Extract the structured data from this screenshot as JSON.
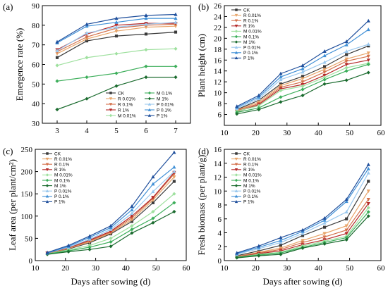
{
  "series_style": [
    {
      "name": "CK",
      "color": "#3a3a3a",
      "marker": "square"
    },
    {
      "name": "R 0.01%",
      "color": "#e8a56a",
      "marker": "tri-down"
    },
    {
      "name": "R 0.1%",
      "color": "#d4704a",
      "marker": "tri-down"
    },
    {
      "name": "R 1%",
      "color": "#b52a2a",
      "marker": "tri-down"
    },
    {
      "name": "M 0.01%",
      "color": "#9ee09e",
      "marker": "diamond"
    },
    {
      "name": "M 0.1%",
      "color": "#3cae5a",
      "marker": "diamond"
    },
    {
      "name": "M 1%",
      "color": "#1a6b2e",
      "marker": "diamond"
    },
    {
      "name": "P 0.01%",
      "color": "#9ac8ee",
      "marker": "tri-up"
    },
    {
      "name": "P 0.1%",
      "color": "#3f8fd6",
      "marker": "tri-up"
    },
    {
      "name": "P 1%",
      "color": "#1f4f9c",
      "marker": "tri-up"
    }
  ],
  "chart_data": [
    {
      "panel": "(a)",
      "type": "line",
      "xlabel": "",
      "ylabel": "Emergence rate (%)",
      "xlim": [
        2.5,
        7.5
      ],
      "ylim": [
        30,
        90
      ],
      "xticks": [
        3,
        4,
        5,
        6,
        7
      ],
      "yticks": [
        30,
        40,
        50,
        60,
        70,
        80,
        90
      ],
      "legend": "bottom-right",
      "x": [
        3,
        4,
        5,
        6,
        7
      ],
      "series": [
        {
          "name": "CK",
          "values": [
            63.5,
            72.0,
            74.5,
            75.5,
            76.5
          ]
        },
        {
          "name": "R 0.01%",
          "values": [
            65.5,
            73.0,
            77.0,
            79.0,
            79.5
          ]
        },
        {
          "name": "R 0.1%",
          "values": [
            66.5,
            74.0,
            78.5,
            80.0,
            80.5
          ]
        },
        {
          "name": "R 1%",
          "values": [
            67.5,
            75.5,
            80.0,
            81.0,
            81.0
          ]
        },
        {
          "name": "M 0.01%",
          "values": [
            59.5,
            63.5,
            65.5,
            67.5,
            68.0
          ]
        },
        {
          "name": "M 0.1%",
          "values": [
            51.5,
            53.5,
            55.5,
            59.0,
            59.0
          ]
        },
        {
          "name": "M 1%",
          "values": [
            37.0,
            42.5,
            49.0,
            53.5,
            53.5
          ]
        },
        {
          "name": "P 0.01%",
          "values": [
            67.0,
            76.0,
            79.0,
            80.5,
            81.5
          ]
        },
        {
          "name": "P 0.1%",
          "values": [
            71.0,
            79.5,
            81.5,
            83.5,
            83.5
          ]
        },
        {
          "name": "P 1%",
          "values": [
            71.5,
            80.5,
            83.5,
            85.0,
            85.5
          ]
        }
      ]
    },
    {
      "panel": "(b)",
      "type": "line",
      "xlabel": "",
      "ylabel": "Plant height (cm)",
      "xlim": [
        10,
        60
      ],
      "ylim": [
        4,
        26
      ],
      "xticks": [
        10,
        20,
        30,
        40,
        50,
        60
      ],
      "yticks": [
        6,
        8,
        10,
        12,
        14,
        16,
        18,
        20,
        22,
        24,
        26
      ],
      "legend": "top-left",
      "x": [
        14,
        21,
        28,
        35,
        42,
        49,
        56
      ],
      "series": [
        {
          "name": "CK",
          "values": [
            6.9,
            8.6,
            11.6,
            13.0,
            14.8,
            17.0,
            18.6
          ]
        },
        {
          "name": "R 0.01%",
          "values": [
            6.8,
            8.3,
            11.3,
            12.6,
            14.3,
            16.2,
            17.3
          ]
        },
        {
          "name": "R 0.1%",
          "values": [
            6.7,
            8.0,
            11.0,
            12.0,
            13.8,
            15.8,
            16.7
          ]
        },
        {
          "name": "R 1%",
          "values": [
            6.5,
            7.8,
            10.7,
            11.5,
            13.2,
            15.2,
            16.0
          ]
        },
        {
          "name": "M 0.01%",
          "values": [
            6.6,
            7.6,
            10.4,
            11.2,
            12.8,
            14.6,
            15.4
          ]
        },
        {
          "name": "M 0.1%",
          "values": [
            6.4,
            7.2,
            9.2,
            10.6,
            12.4,
            14.0,
            15.2
          ]
        },
        {
          "name": "M 1%",
          "values": [
            6.1,
            6.9,
            8.3,
            9.5,
            11.6,
            12.3,
            13.7
          ]
        },
        {
          "name": "P 0.01%",
          "values": [
            7.1,
            8.9,
            12.4,
            13.8,
            15.6,
            17.6,
            18.9
          ]
        },
        {
          "name": "P 0.1%",
          "values": [
            7.3,
            9.2,
            12.9,
            14.4,
            16.8,
            18.8,
            21.6
          ]
        },
        {
          "name": "P 1%",
          "values": [
            7.5,
            9.5,
            13.5,
            15.0,
            17.6,
            19.4,
            23.2
          ]
        }
      ]
    },
    {
      "panel": "(c)",
      "type": "line",
      "xlabel": "Days after sowing (d)",
      "ylabel": "Leaf area (per plant/cm²)",
      "xlim": [
        10,
        60
      ],
      "ylim": [
        0,
        250
      ],
      "xticks": [
        10,
        20,
        30,
        40,
        50,
        60
      ],
      "yticks": [
        0,
        50,
        100,
        150,
        200,
        250
      ],
      "legend": "top-left",
      "x": [
        14,
        21,
        28,
        35,
        42,
        49,
        56
      ],
      "series": [
        {
          "name": "CK",
          "values": [
            16,
            26,
            40,
            60,
            88,
            130,
            178
          ]
        },
        {
          "name": "R 0.01%",
          "values": [
            16,
            27,
            42,
            62,
            92,
            136,
            188
          ]
        },
        {
          "name": "R 0.1%",
          "values": [
            16,
            28,
            44,
            64,
            96,
            140,
            195
          ]
        },
        {
          "name": "R 1%",
          "values": [
            17,
            29,
            46,
            66,
            100,
            142,
            198
          ]
        },
        {
          "name": "M 0.01%",
          "values": [
            15,
            24,
            34,
            50,
            78,
            110,
            150
          ]
        },
        {
          "name": "M 0.1%",
          "values": [
            15,
            22,
            30,
            42,
            70,
            95,
            130
          ]
        },
        {
          "name": "M 1%",
          "values": [
            14,
            20,
            25,
            32,
            62,
            85,
            110
          ]
        },
        {
          "name": "P 0.01%",
          "values": [
            17,
            30,
            48,
            70,
            106,
            155,
            200
          ]
        },
        {
          "name": "P 0.1%",
          "values": [
            17,
            32,
            52,
            74,
            114,
            172,
            210
          ]
        },
        {
          "name": "P 1%",
          "values": [
            18,
            34,
            55,
            78,
            122,
            188,
            243
          ]
        }
      ]
    },
    {
      "panel": "(d)",
      "type": "line",
      "xlabel": "Days after sowing (d)",
      "ylabel": "Fresh biomass (per plant/g)",
      "xlim": [
        10,
        60
      ],
      "ylim": [
        0,
        16
      ],
      "xticks": [
        10,
        20,
        30,
        40,
        50,
        60
      ],
      "yticks": [
        0,
        2,
        4,
        6,
        8,
        10,
        12,
        14,
        16
      ],
      "legend": "top-left",
      "x": [
        14,
        21,
        28,
        35,
        42,
        49,
        56
      ],
      "series": [
        {
          "name": "CK",
          "values": [
            0.7,
            1.4,
            2.2,
            3.6,
            4.8,
            6.0,
            11.4
          ]
        },
        {
          "name": "R 0.01%",
          "values": [
            0.6,
            1.2,
            1.8,
            2.9,
            3.9,
            5.0,
            10.0
          ]
        },
        {
          "name": "R 0.1%",
          "values": [
            0.6,
            1.1,
            1.6,
            2.6,
            3.4,
            4.4,
            8.8
          ]
        },
        {
          "name": "R 1%",
          "values": [
            0.5,
            1.0,
            1.4,
            2.3,
            3.0,
            3.9,
            8.2
          ]
        },
        {
          "name": "M 0.01%",
          "values": [
            0.5,
            0.9,
            1.2,
            2.1,
            2.8,
            3.5,
            7.6
          ]
        },
        {
          "name": "M 0.1%",
          "values": [
            0.5,
            0.8,
            1.1,
            1.9,
            2.6,
            3.3,
            7.0
          ]
        },
        {
          "name": "M 1%",
          "values": [
            0.4,
            0.7,
            0.9,
            1.8,
            2.4,
            3.0,
            6.4
          ]
        },
        {
          "name": "P 0.01%",
          "values": [
            0.9,
            1.7,
            2.6,
            3.9,
            5.4,
            7.0,
            12.6
          ]
        },
        {
          "name": "P 0.1%",
          "values": [
            1.0,
            1.9,
            2.9,
            4.2,
            5.8,
            8.5,
            13.2
          ]
        },
        {
          "name": "P 1%",
          "values": [
            1.1,
            2.1,
            3.3,
            4.4,
            6.1,
            8.8,
            13.8
          ]
        }
      ]
    }
  ]
}
